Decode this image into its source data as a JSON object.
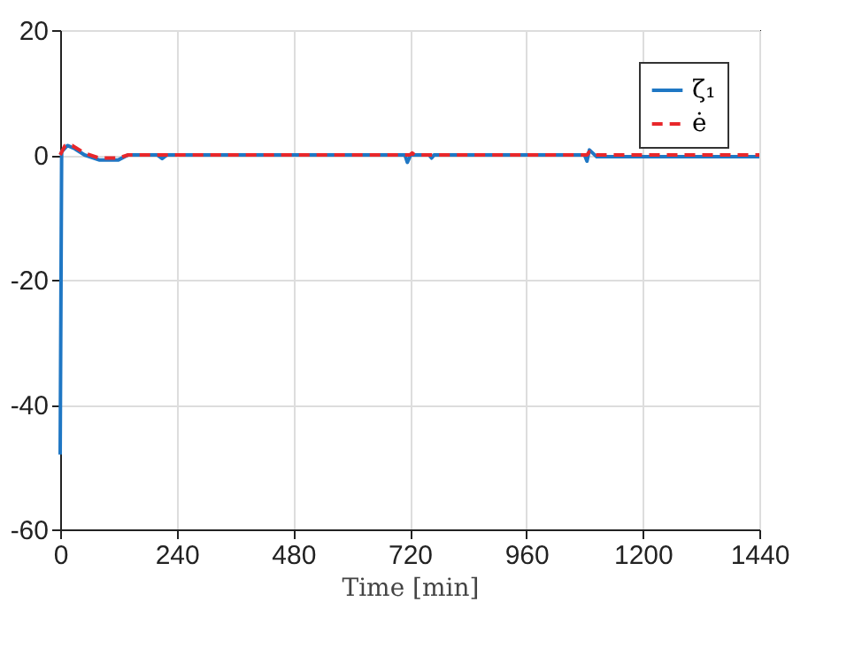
{
  "chart_data": {
    "type": "line",
    "xlabel": "Time [min]",
    "xlim": [
      0,
      1440
    ],
    "xticks": [
      0,
      240,
      480,
      720,
      960,
      1200,
      1440
    ],
    "ylim": [
      -60,
      20
    ],
    "yticks": [
      -60,
      -40,
      -20,
      0,
      20
    ],
    "grid": true,
    "legend": "top right",
    "series": [
      {
        "name": "ζ₁",
        "color": "#1f77c4",
        "line_style": "solid",
        "x": [
          0,
          3,
          15,
          30,
          50,
          80,
          120,
          140,
          200,
          210,
          220,
          710,
          715,
          722,
          760,
          765,
          770,
          1080,
          1085,
          1090,
          1105,
          1440
        ],
        "values": [
          -48,
          0.5,
          1.5,
          1,
          0,
          -0.8,
          -0.8,
          0,
          0,
          -0.6,
          0,
          0,
          -1.2,
          0,
          0,
          -0.5,
          0,
          0,
          -1,
          0.8,
          -0.3,
          -0.3
        ]
      },
      {
        "name": "ė",
        "color": "#e8272b",
        "line_style": "dashed",
        "x": [
          0,
          10,
          25,
          50,
          80,
          120,
          140,
          720,
          725,
          730,
          1085,
          1090,
          1100,
          1440
        ],
        "values": [
          0,
          1.5,
          1.5,
          0.3,
          -0.5,
          -0.5,
          0,
          0,
          0.3,
          0,
          0,
          0.5,
          0,
          0
        ]
      }
    ]
  }
}
